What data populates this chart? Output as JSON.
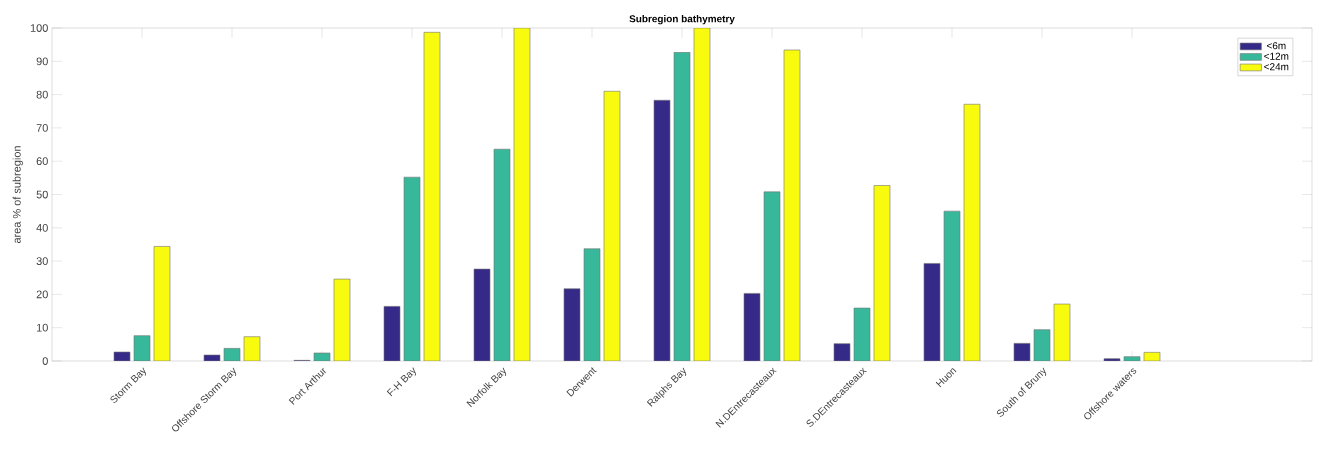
{
  "chart_data": {
    "type": "bar",
    "title": "Subregion bathymetry",
    "ylabel": "area % of subregion",
    "categories": [
      "Storm Bay",
      "Offshore Storm Bay",
      "Port Arthur",
      "F-H Bay",
      "Norfolk Bay",
      "Derwent",
      "Ralphs Bay",
      "N.DEntrecasteaux",
      "S.DEntrecasteaux",
      "Huon",
      "South of Bruny",
      "Offshore waters"
    ],
    "series": [
      {
        "name": "<6m",
        "color": "#352a87",
        "values": [
          2.7,
          1.8,
          0.2,
          16.4,
          27.6,
          21.7,
          78.3,
          20.3,
          5.2,
          29.3,
          5.3,
          0.7
        ]
      },
      {
        "name": "<12m",
        "color": "#38b89a",
        "values": [
          7.6,
          3.8,
          2.4,
          55.2,
          63.6,
          33.7,
          92.7,
          50.8,
          15.9,
          45.0,
          9.4,
          1.3
        ]
      },
      {
        "name": "<24m",
        "color": "#f9fb0e",
        "values": [
          34.4,
          7.3,
          24.6,
          98.7,
          100,
          81.0,
          100,
          93.4,
          52.7,
          77.1,
          17.1,
          2.6
        ]
      }
    ],
    "ylim": [
      0,
      100
    ],
    "yticks": [
      0,
      10,
      20,
      30,
      40,
      50,
      60,
      70,
      80,
      90,
      100
    ],
    "legend": "top right"
  }
}
